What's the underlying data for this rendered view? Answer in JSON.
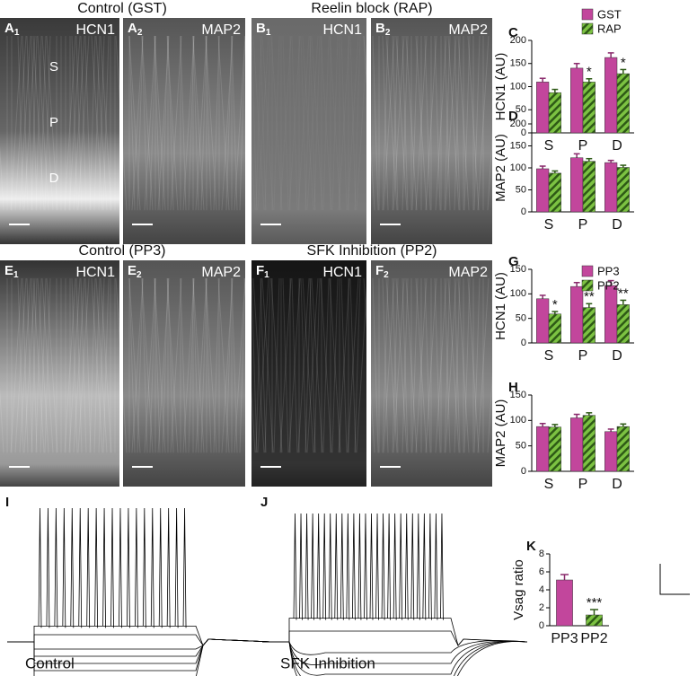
{
  "panels": [
    {
      "title": "Control (GST)",
      "images": [
        {
          "letter": "A",
          "sub": "1",
          "stain": "HCN1",
          "layers": [
            "S",
            "P",
            "D"
          ]
        },
        {
          "letter": "A",
          "sub": "2",
          "stain": "MAP2"
        }
      ]
    },
    {
      "title": "Reelin block (RAP)",
      "images": [
        {
          "letter": "B",
          "sub": "1",
          "stain": "HCN1"
        },
        {
          "letter": "B",
          "sub": "2",
          "stain": "MAP2"
        }
      ]
    },
    {
      "title": "Control (PP3)",
      "images": [
        {
          "letter": "E",
          "sub": "1",
          "stain": "HCN1"
        },
        {
          "letter": "E",
          "sub": "2",
          "stain": "MAP2"
        }
      ]
    },
    {
      "title": "SFK Inhibition (PP2)",
      "images": [
        {
          "letter": "F",
          "sub": "1",
          "stain": "HCN1"
        },
        {
          "letter": "F",
          "sub": "2",
          "stain": "MAP2"
        }
      ]
    }
  ],
  "traces": [
    {
      "letter": "I",
      "label": "Control"
    },
    {
      "letter": "J",
      "label": "SFK Inhibition"
    }
  ],
  "chart_data": [
    {
      "type": "bar",
      "letter": "C",
      "ylabel": "HCN1 (AU)",
      "categories": [
        "S",
        "P",
        "D"
      ],
      "ylim": [
        0,
        200
      ],
      "yticks": [
        0,
        50,
        100,
        150,
        200
      ],
      "legend": true,
      "series": [
        {
          "name": "GST",
          "color": "#c2469c",
          "values": [
            110,
            140,
            163
          ],
          "errors": [
            8,
            10,
            10
          ]
        },
        {
          "name": "RAP",
          "color": "#7cc242",
          "pattern": "hatch",
          "values": [
            87,
            110,
            128
          ],
          "errors": [
            7,
            7,
            9
          ]
        }
      ],
      "annotations": [
        {
          "series": "RAP",
          "category": "P",
          "text": "*"
        },
        {
          "series": "RAP",
          "category": "D",
          "text": "*"
        }
      ]
    },
    {
      "type": "bar",
      "letter": "D",
      "ylabel": "MAP2 (AU)",
      "categories": [
        "S",
        "P",
        "D"
      ],
      "ylim": [
        0,
        200
      ],
      "yticks": [
        0,
        50,
        100,
        150,
        200
      ],
      "series": [
        {
          "name": "GST",
          "color": "#c2469c",
          "values": [
            98,
            123,
            112
          ],
          "errors": [
            6,
            9,
            5
          ]
        },
        {
          "name": "RAP",
          "color": "#7cc242",
          "pattern": "hatch",
          "values": [
            88,
            115,
            101
          ],
          "errors": [
            5,
            6,
            5
          ]
        }
      ]
    },
    {
      "type": "bar",
      "letter": "G",
      "ylabel": "HCN1 (AU)",
      "categories": [
        "S",
        "P",
        "D"
      ],
      "ylim": [
        0,
        150
      ],
      "yticks": [
        0,
        50,
        100,
        150
      ],
      "legend": true,
      "series": [
        {
          "name": "PP3",
          "color": "#c2469c",
          "values": [
            90,
            115,
            117
          ],
          "errors": [
            7,
            8,
            10
          ]
        },
        {
          "name": "PP2",
          "color": "#7cc242",
          "pattern": "hatch",
          "values": [
            59,
            72,
            78
          ],
          "errors": [
            5,
            8,
            9
          ]
        }
      ],
      "annotations": [
        {
          "series": "PP2",
          "category": "S",
          "text": "*"
        },
        {
          "series": "PP2",
          "category": "P",
          "text": "**"
        },
        {
          "series": "PP2",
          "category": "D",
          "text": "**"
        }
      ]
    },
    {
      "type": "bar",
      "letter": "H",
      "ylabel": "MAP2 (AU)",
      "categories": [
        "S",
        "P",
        "D"
      ],
      "ylim": [
        0,
        150
      ],
      "yticks": [
        0,
        50,
        100,
        150
      ],
      "series": [
        {
          "name": "PP3",
          "color": "#c2469c",
          "values": [
            88,
            105,
            78
          ],
          "errors": [
            6,
            7,
            5
          ]
        },
        {
          "name": "PP2",
          "color": "#7cc242",
          "pattern": "hatch",
          "values": [
            87,
            110,
            88
          ],
          "errors": [
            5,
            5,
            5
          ]
        }
      ]
    },
    {
      "type": "bar",
      "letter": "K",
      "ylabel": "Vsag ratio",
      "categories": [
        "PP3",
        "PP2"
      ],
      "ylim": [
        0,
        8
      ],
      "yticks": [
        0,
        2,
        4,
        6,
        8
      ],
      "series": [
        {
          "name": "Vsag ratio",
          "colors": [
            "#c2469c",
            "#7cc242"
          ],
          "patterns": [
            "solid",
            "hatch"
          ],
          "values": [
            5.1,
            1.2
          ],
          "errors": [
            0.6,
            0.6
          ]
        }
      ],
      "annotations": [
        {
          "category": "PP2",
          "text": "***"
        }
      ]
    }
  ]
}
